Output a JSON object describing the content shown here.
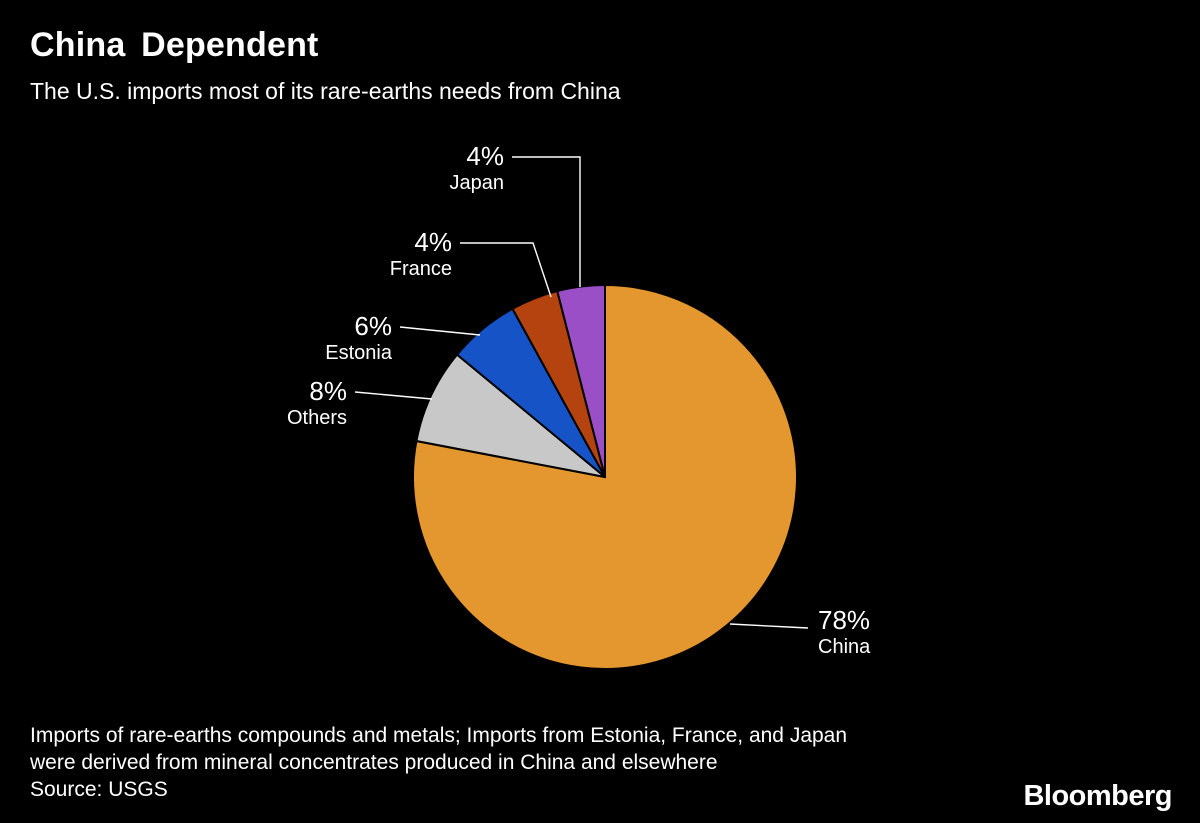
{
  "header": {
    "title": "China Dependent",
    "subtitle": "The U.S. imports most of its rare-earths needs from China"
  },
  "chart_data": {
    "type": "pie",
    "title": "China Dependent",
    "subtitle": "The U.S. imports most of its rare-earths needs from China",
    "value_suffix": "%",
    "total": 100,
    "direction": "clockwise",
    "start_angle_deg": 0,
    "slices": [
      {
        "label": "China",
        "value": 78,
        "color": "#E4972E"
      },
      {
        "label": "Others",
        "value": 8,
        "color": "#C8C8C8"
      },
      {
        "label": "Estonia",
        "value": 6,
        "color": "#1553C6"
      },
      {
        "label": "France",
        "value": 4,
        "color": "#B5430F"
      },
      {
        "label": "Japan",
        "value": 4,
        "color": "#9B4FC7"
      }
    ]
  },
  "footnote": {
    "lines": [
      "Imports of rare-earths compounds and metals; Imports from Estonia, France, and Japan",
      "were derived from mineral concentrates produced in China and elsewhere"
    ],
    "source": "Source: USGS"
  },
  "branding": {
    "logo": "Bloomberg"
  },
  "colors": {
    "background": "#000000",
    "text": "#FFFFFF",
    "callout_line": "#FFFFFF"
  }
}
